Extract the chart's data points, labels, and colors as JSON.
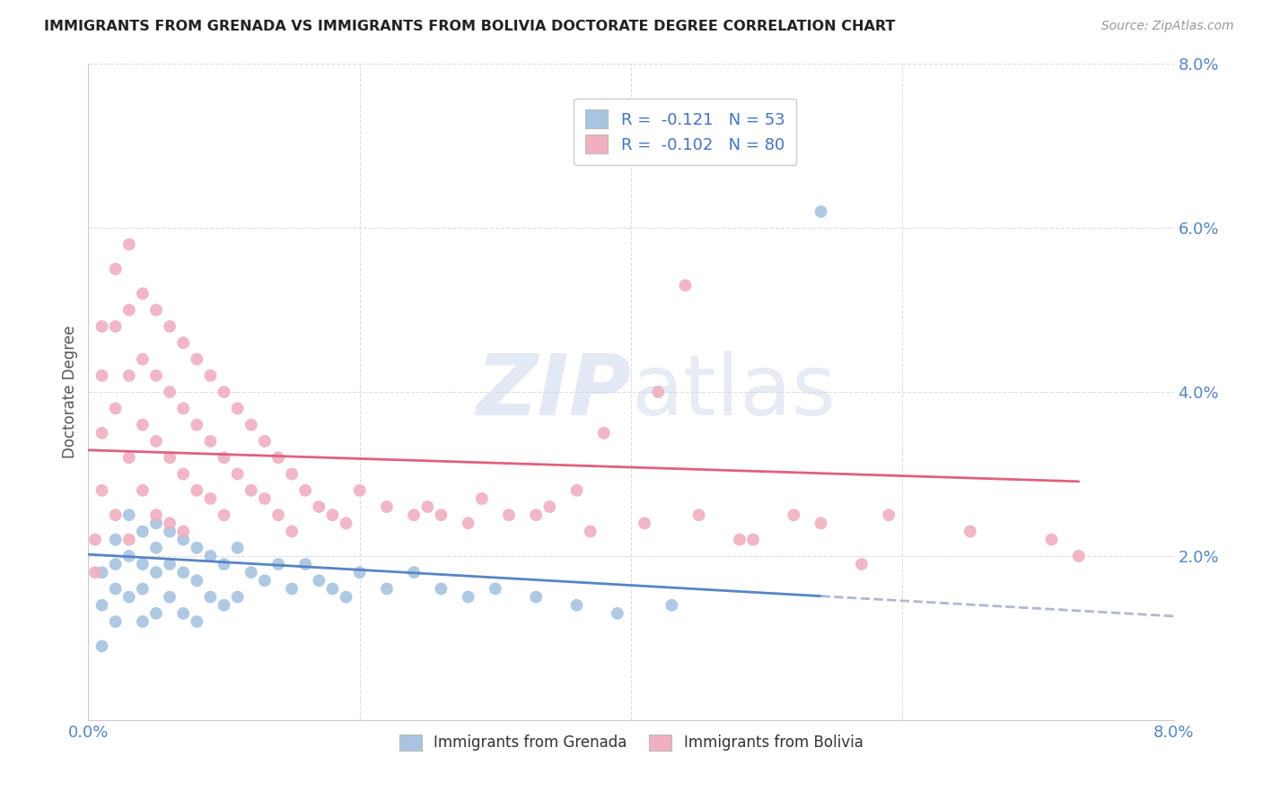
{
  "title": "IMMIGRANTS FROM GRENADA VS IMMIGRANTS FROM BOLIVIA DOCTORATE DEGREE CORRELATION CHART",
  "source": "Source: ZipAtlas.com",
  "ylabel": "Doctorate Degree",
  "xlim": [
    0.0,
    0.08
  ],
  "ylim": [
    0.0,
    0.08
  ],
  "xticks": [
    0.0,
    0.02,
    0.04,
    0.06,
    0.08
  ],
  "yticks": [
    0.0,
    0.02,
    0.04,
    0.06,
    0.08
  ],
  "x_tick_labels": [
    "0.0%",
    "",
    "",
    "",
    "8.0%"
  ],
  "y_tick_labels": [
    "",
    "2.0%",
    "4.0%",
    "6.0%",
    "8.0%"
  ],
  "grenada_color": "#a8c4e0",
  "bolivia_color": "#f0b0c0",
  "grenada_line_color": "#5585c5",
  "bolivia_line_color": "#e06080",
  "dash_color": "#b0b8d0",
  "grenada_R": -0.121,
  "grenada_N": 53,
  "bolivia_R": -0.102,
  "bolivia_N": 80,
  "legend_label1": "Immigrants from Grenada",
  "legend_label2": "Immigrants from Bolivia",
  "background_color": "#ffffff",
  "grid_color": "#dddddd",
  "watermark_zip": "ZIP",
  "watermark_atlas": "atlas",
  "tick_color": "#5585c5",
  "grenada_x": [
    0.001,
    0.001,
    0.001,
    0.002,
    0.002,
    0.002,
    0.002,
    0.003,
    0.003,
    0.003,
    0.004,
    0.004,
    0.004,
    0.004,
    0.005,
    0.005,
    0.005,
    0.005,
    0.006,
    0.006,
    0.006,
    0.007,
    0.007,
    0.007,
    0.008,
    0.008,
    0.008,
    0.009,
    0.009,
    0.01,
    0.01,
    0.011,
    0.011,
    0.012,
    0.013,
    0.014,
    0.015,
    0.016,
    0.017,
    0.018,
    0.019,
    0.02,
    0.022,
    0.024,
    0.026,
    0.028,
    0.03,
    0.033,
    0.036,
    0.039,
    0.043,
    0.048,
    0.054
  ],
  "grenada_y": [
    0.018,
    0.014,
    0.009,
    0.022,
    0.019,
    0.016,
    0.012,
    0.025,
    0.02,
    0.015,
    0.023,
    0.019,
    0.016,
    0.012,
    0.024,
    0.021,
    0.018,
    0.013,
    0.023,
    0.019,
    0.015,
    0.022,
    0.018,
    0.013,
    0.021,
    0.017,
    0.012,
    0.02,
    0.015,
    0.019,
    0.014,
    0.021,
    0.015,
    0.018,
    0.017,
    0.019,
    0.016,
    0.019,
    0.017,
    0.016,
    0.015,
    0.018,
    0.016,
    0.018,
    0.016,
    0.015,
    0.016,
    0.015,
    0.014,
    0.013,
    0.014,
    0.07,
    0.062
  ],
  "bolivia_x": [
    0.0005,
    0.0005,
    0.001,
    0.001,
    0.001,
    0.001,
    0.002,
    0.002,
    0.002,
    0.002,
    0.003,
    0.003,
    0.003,
    0.003,
    0.003,
    0.004,
    0.004,
    0.004,
    0.004,
    0.005,
    0.005,
    0.005,
    0.005,
    0.006,
    0.006,
    0.006,
    0.006,
    0.007,
    0.007,
    0.007,
    0.007,
    0.008,
    0.008,
    0.008,
    0.009,
    0.009,
    0.009,
    0.01,
    0.01,
    0.01,
    0.011,
    0.011,
    0.012,
    0.012,
    0.013,
    0.013,
    0.014,
    0.014,
    0.015,
    0.015,
    0.016,
    0.017,
    0.018,
    0.019,
    0.02,
    0.022,
    0.024,
    0.026,
    0.028,
    0.031,
    0.034,
    0.037,
    0.041,
    0.045,
    0.049,
    0.054,
    0.059,
    0.065,
    0.071,
    0.073,
    0.038,
    0.042,
    0.033,
    0.029,
    0.025,
    0.044,
    0.036,
    0.052,
    0.057,
    0.048
  ],
  "bolivia_y": [
    0.022,
    0.018,
    0.048,
    0.042,
    0.035,
    0.028,
    0.055,
    0.048,
    0.038,
    0.025,
    0.058,
    0.05,
    0.042,
    0.032,
    0.022,
    0.052,
    0.044,
    0.036,
    0.028,
    0.05,
    0.042,
    0.034,
    0.025,
    0.048,
    0.04,
    0.032,
    0.024,
    0.046,
    0.038,
    0.03,
    0.023,
    0.044,
    0.036,
    0.028,
    0.042,
    0.034,
    0.027,
    0.04,
    0.032,
    0.025,
    0.038,
    0.03,
    0.036,
    0.028,
    0.034,
    0.027,
    0.032,
    0.025,
    0.03,
    0.023,
    0.028,
    0.026,
    0.025,
    0.024,
    0.028,
    0.026,
    0.025,
    0.025,
    0.024,
    0.025,
    0.026,
    0.023,
    0.024,
    0.025,
    0.022,
    0.024,
    0.025,
    0.023,
    0.022,
    0.02,
    0.035,
    0.04,
    0.025,
    0.027,
    0.026,
    0.053,
    0.028,
    0.025,
    0.019,
    0.022
  ]
}
